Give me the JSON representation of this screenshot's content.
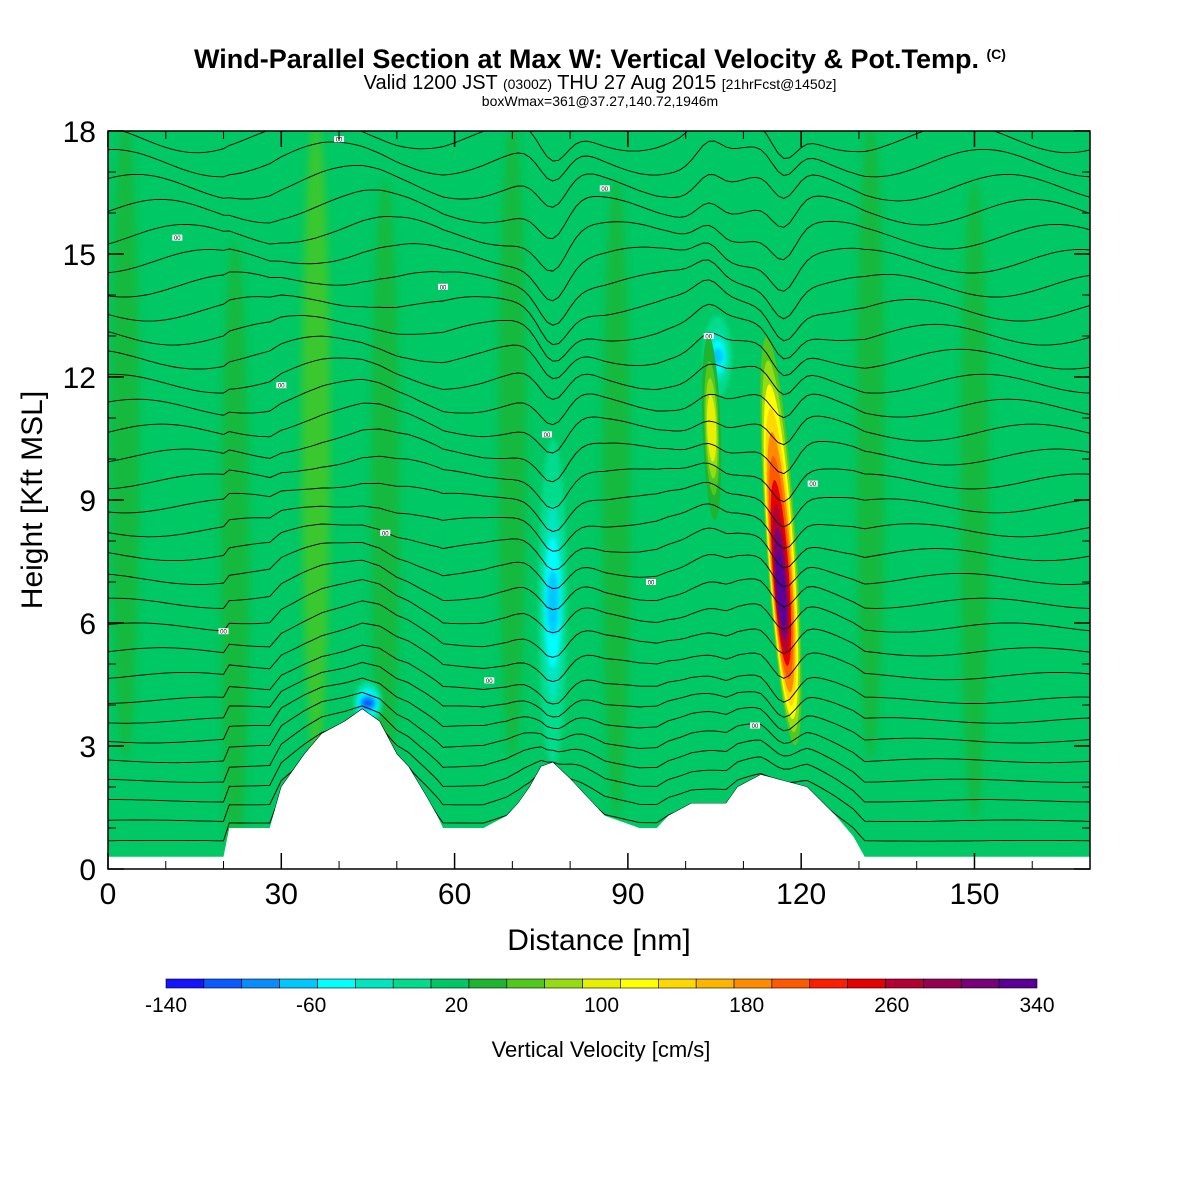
{
  "header": {
    "title": "Wind-Parallel Section at Max W: Vertical Velocity & Pot.Temp.",
    "copyright": "(C)",
    "valid_prefix": "Valid 1200 JST",
    "valid_utc": "(0300Z)",
    "valid_date": "THU 27 Aug 2015",
    "forecast": "[21hrFcst@1450z]",
    "box_info": "boxWmax=361@37.27,140.72,1946m"
  },
  "colorbar": {
    "label": "Vertical Velocity [cm/s]",
    "tick_labels": [
      "-140",
      "-60",
      "20",
      "100",
      "180",
      "260",
      "340"
    ],
    "colors": [
      "#1414ff",
      "#0a5aff",
      "#0a8cff",
      "#00c8ff",
      "#00ffff",
      "#00e6c0",
      "#00dc8c",
      "#00c864",
      "#1eb432",
      "#50c81e",
      "#96dc14",
      "#e6f000",
      "#ffff00",
      "#ffd800",
      "#ffb400",
      "#ff8c00",
      "#ff5a00",
      "#ff1e00",
      "#e60000",
      "#b40032",
      "#960050",
      "#780078",
      "#5a0096"
    ]
  },
  "chart_data": {
    "type": "heatmap",
    "title": "Wind-Parallel Section at Max W: Vertical Velocity & Pot.Temp.",
    "xlabel": "Distance [nm]",
    "ylabel": "Height [Kft MSL]",
    "xlim": [
      0,
      170
    ],
    "ylim": [
      0,
      18
    ],
    "x_ticks": [
      0,
      30,
      60,
      90,
      120,
      150
    ],
    "y_ticks": [
      0,
      3,
      6,
      9,
      12,
      15,
      18
    ],
    "background_velocity_cm_s": 20,
    "updraft_cores": [
      {
        "x_nm": 116.5,
        "y_kft_bottom": 3.0,
        "y_kft_top": 13.0,
        "max_cm_s": 340
      },
      {
        "x_nm": 104.5,
        "y_kft_bottom": 8.5,
        "y_kft_top": 13.0,
        "max_cm_s": 110
      }
    ],
    "downdraft_zones": [
      {
        "x_nm": 45,
        "y_kft_bottom": 3.5,
        "y_kft_top": 4.6,
        "min_cm_s": -100
      },
      {
        "x_nm": 77,
        "y_kft_bottom": 2.5,
        "y_kft_top": 10.5,
        "min_cm_s": -60
      },
      {
        "x_nm": 105.5,
        "y_kft_bottom": 11.5,
        "y_kft_top": 13.5,
        "min_cm_s": -60
      }
    ],
    "terrain_kft": {
      "x": [
        0,
        20,
        21,
        22,
        28,
        30,
        34,
        37,
        41,
        44,
        47,
        50,
        52,
        55,
        57,
        58,
        60,
        65,
        69,
        71,
        73,
        75,
        77,
        80,
        84,
        86,
        88,
        92,
        95,
        97,
        101,
        107,
        109,
        113,
        121,
        126,
        129,
        131,
        170
      ],
      "y": [
        0.3,
        0.3,
        1.0,
        1.0,
        1.0,
        2.0,
        2.8,
        3.3,
        3.6,
        3.9,
        3.6,
        2.8,
        2.5,
        1.8,
        1.3,
        1.0,
        1.0,
        1.0,
        1.3,
        1.6,
        2.0,
        2.5,
        2.6,
        2.2,
        1.6,
        1.3,
        1.2,
        1.0,
        1.0,
        1.3,
        1.6,
        1.6,
        2.0,
        2.3,
        2.0,
        1.3,
        0.8,
        0.3,
        0.3
      ]
    },
    "isentropes_kft": [
      0.5,
      1.0,
      1.5,
      2.0,
      2.5,
      3.0,
      3.5,
      4.0,
      4.6,
      5.2,
      5.8,
      6.4,
      7.0,
      7.6,
      8.2,
      8.8,
      9.4,
      10.0,
      10.6,
      11.2,
      11.8,
      12.4,
      13.0,
      13.6,
      14.2,
      14.8,
      15.4,
      16.0,
      16.6,
      17.2,
      17.8
    ],
    "contour_label_text": "00"
  }
}
